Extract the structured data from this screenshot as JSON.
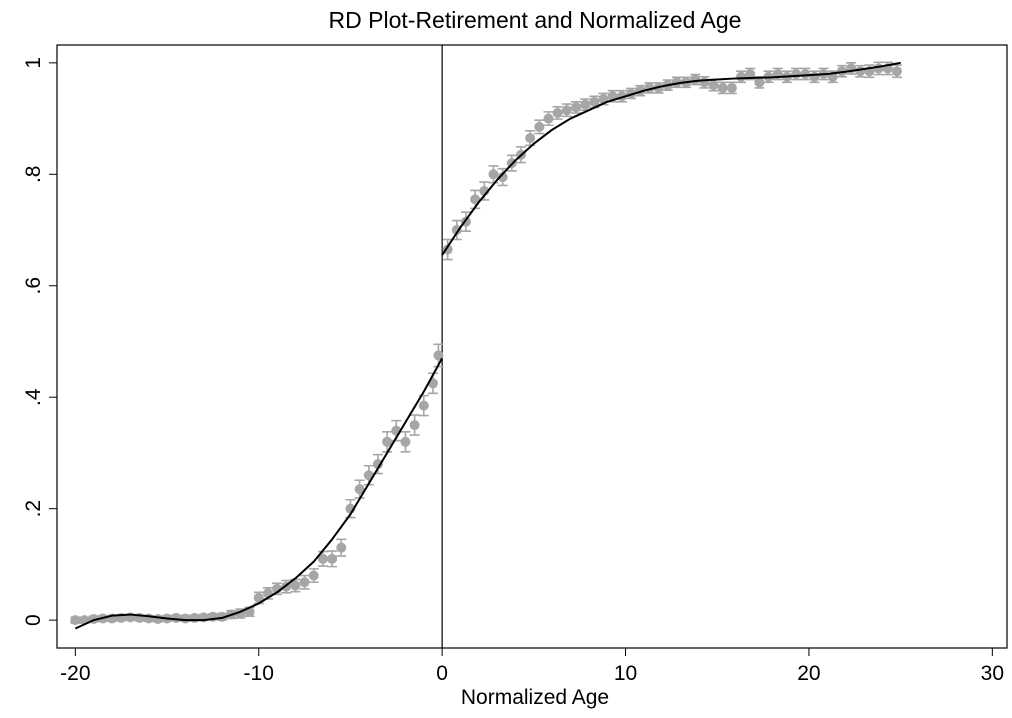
{
  "chart_data": {
    "type": "scatter",
    "title": "RD Plot-Retirement and Normalized Age",
    "x_label": "Normalized Age",
    "xlim": [
      -21,
      30.8
    ],
    "xticks": [
      -20,
      -10,
      0,
      10,
      20,
      30
    ],
    "ylim": [
      -0.05,
      1.032
    ],
    "yticks": [
      0,
      {
        "value": 0.2,
        "label": ".2"
      },
      {
        "value": 0.4,
        "label": ".4"
      },
      {
        "value": 0.6,
        "label": ".6"
      },
      {
        "value": 0.8,
        "label": ".8"
      },
      1
    ],
    "xline": 0,
    "grid": false,
    "series": [
      {
        "type": "scatter",
        "color": "#a6a6a6",
        "x": [
          -20,
          -19.5,
          -19,
          -18.5,
          -18,
          -17.5,
          -17,
          -16.5,
          -16,
          -15.5,
          -15,
          -14.5,
          -14,
          -13.5,
          -13,
          -12.5,
          -12,
          -11.5,
          -11,
          -10.5,
          -10,
          -9.5,
          -9,
          -8.5,
          -8,
          -7.5,
          -7,
          -6.5,
          -6,
          -5.5,
          -5,
          -4.5,
          -4,
          -3.5,
          -3,
          -2.5,
          -2,
          -1.5,
          -1,
          -0.5,
          -0.2,
          0.3,
          0.8,
          1.3,
          1.8,
          2.3,
          2.8,
          3.3,
          3.8,
          4.3,
          4.8,
          5.3,
          5.8,
          6.3,
          6.8,
          7.3,
          7.8,
          8.3,
          8.8,
          9.3,
          9.8,
          10.3,
          10.8,
          11.3,
          11.8,
          12.3,
          12.8,
          13.3,
          13.8,
          14.3,
          14.8,
          15.3,
          15.8,
          16.3,
          16.8,
          17.3,
          17.8,
          18.3,
          18.8,
          19.3,
          19.8,
          20.3,
          20.8,
          21.3,
          21.8,
          22.3,
          22.8,
          23.3,
          23.8,
          24.3,
          24.8
        ],
        "values": [
          0,
          0,
          0.002,
          0.003,
          0.003,
          0.004,
          0.005,
          0.004,
          0.003,
          0.002,
          0.003,
          0.004,
          0.003,
          0.004,
          0.005,
          0.006,
          0.006,
          0.01,
          0.012,
          0.015,
          0.04,
          0.048,
          0.056,
          0.06,
          0.062,
          0.068,
          0.08,
          0.11,
          0.11,
          0.13,
          0.2,
          0.235,
          0.26,
          0.28,
          0.32,
          0.34,
          0.32,
          0.35,
          0.385,
          0.425,
          0.475,
          0.665,
          0.7,
          0.715,
          0.755,
          0.77,
          0.8,
          0.795,
          0.82,
          0.835,
          0.865,
          0.885,
          0.9,
          0.91,
          0.915,
          0.92,
          0.925,
          0.93,
          0.935,
          0.94,
          0.94,
          0.945,
          0.95,
          0.955,
          0.955,
          0.96,
          0.965,
          0.965,
          0.97,
          0.965,
          0.96,
          0.955,
          0.955,
          0.975,
          0.98,
          0.965,
          0.975,
          0.98,
          0.975,
          0.98,
          0.98,
          0.975,
          0.98,
          0.975,
          0.985,
          0.99,
          0.985,
          0.985,
          0.99,
          0.99,
          0.985
        ],
        "errors": [
          0.005,
          0.005,
          0.005,
          0.005,
          0.005,
          0.005,
          0.005,
          0.005,
          0.005,
          0.005,
          0.005,
          0.005,
          0.005,
          0.005,
          0.005,
          0.005,
          0.006,
          0.007,
          0.008,
          0.008,
          0.01,
          0.01,
          0.01,
          0.011,
          0.011,
          0.012,
          0.012,
          0.013,
          0.014,
          0.015,
          0.016,
          0.016,
          0.017,
          0.017,
          0.018,
          0.018,
          0.018,
          0.018,
          0.018,
          0.018,
          0.02,
          0.018,
          0.017,
          0.017,
          0.016,
          0.016,
          0.015,
          0.015,
          0.014,
          0.014,
          0.013,
          0.012,
          0.012,
          0.011,
          0.011,
          0.01,
          0.01,
          0.01,
          0.01,
          0.01,
          0.01,
          0.009,
          0.009,
          0.009,
          0.009,
          0.009,
          0.009,
          0.009,
          0.009,
          0.01,
          0.01,
          0.01,
          0.01,
          0.01,
          0.01,
          0.01,
          0.01,
          0.01,
          0.01,
          0.01,
          0.01,
          0.01,
          0.01,
          0.01,
          0.01,
          0.01,
          0.01,
          0.011,
          0.011,
          0.011,
          0.011
        ]
      },
      {
        "type": "line",
        "color": "#000000",
        "x": [
          -20,
          -19,
          -18,
          -17,
          -16,
          -15,
          -14,
          -13,
          -12,
          -11,
          -10,
          -9,
          -8,
          -7,
          -6,
          -5,
          -4,
          -3,
          -2,
          -1,
          0,
          0,
          0,
          1,
          2,
          3,
          4,
          5,
          6,
          7,
          8,
          9,
          10,
          11,
          12,
          13,
          14,
          15,
          16,
          17,
          18,
          19,
          20,
          21,
          22,
          23,
          24,
          25
        ],
        "values": [
          -0.015,
          0,
          0.008,
          0.01,
          0.007,
          0.003,
          0,
          0,
          0.004,
          0.015,
          0.03,
          0.05,
          0.075,
          0.105,
          0.145,
          0.19,
          0.245,
          0.3,
          0.355,
          0.41,
          0.47,
          null,
          0.655,
          0.705,
          0.75,
          0.79,
          0.825,
          0.855,
          0.88,
          0.9,
          0.915,
          0.93,
          0.94,
          0.95,
          0.958,
          0.964,
          0.968,
          0.97,
          0.972,
          0.973,
          0.974,
          0.976,
          0.978,
          0.98,
          0.984,
          0.989,
          0.994,
          1
        ]
      }
    ]
  }
}
